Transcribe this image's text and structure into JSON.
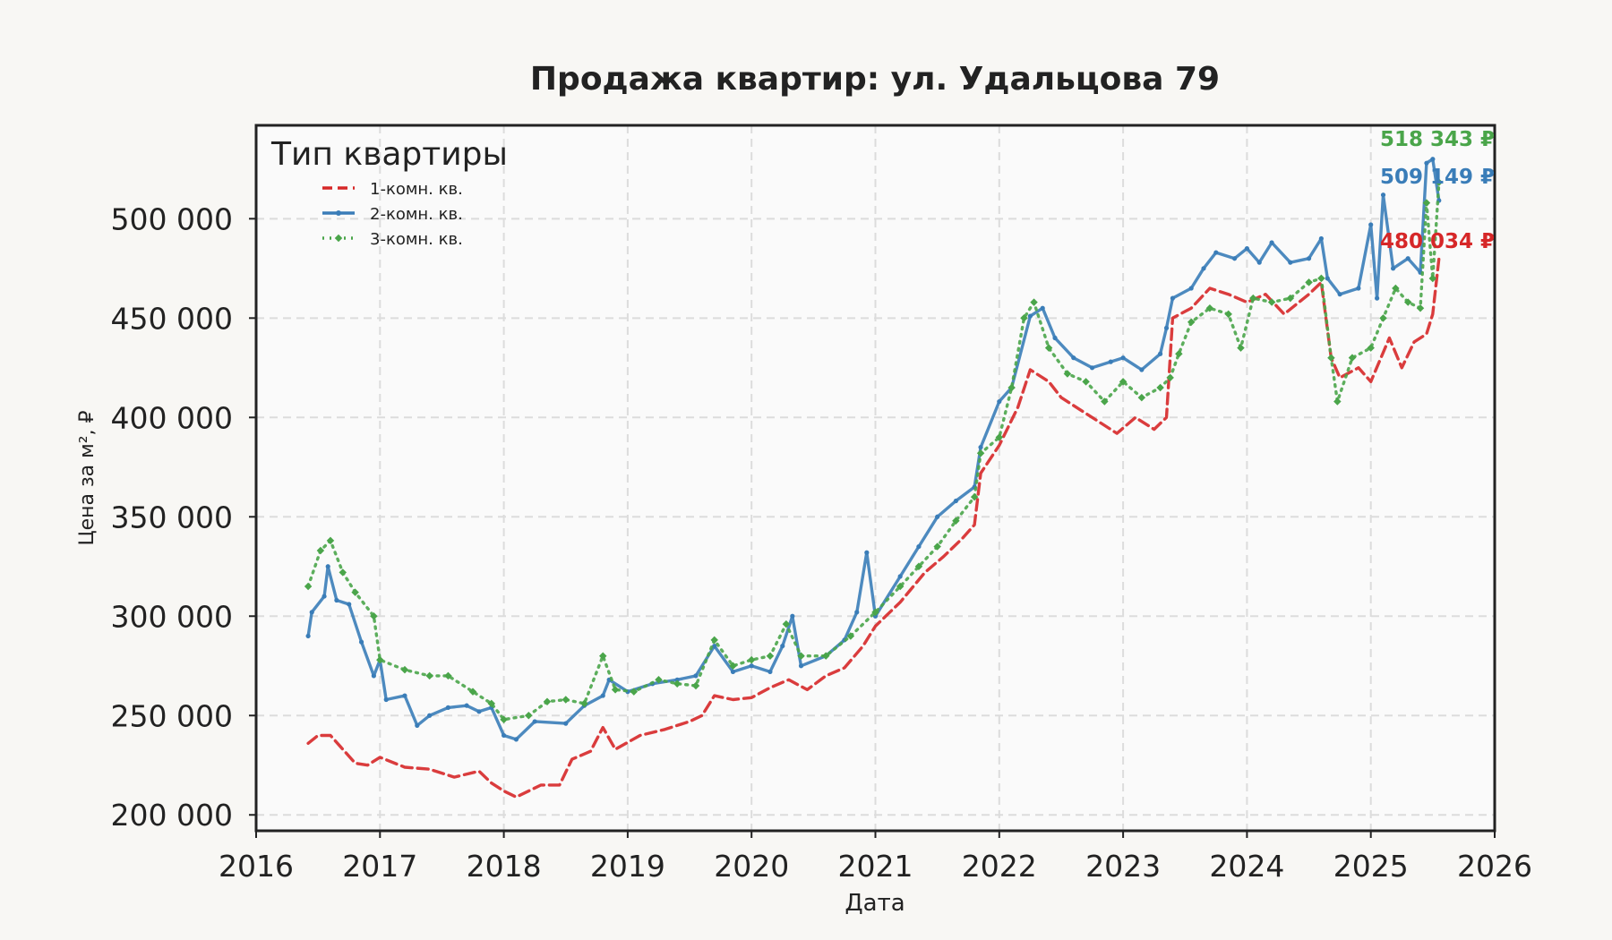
{
  "chart_data": {
    "type": "line",
    "title": "Продажа квартир: ул. Удальцова 79",
    "xlabel": "Дата",
    "ylabel": "Цена за м², ₽",
    "xlim": [
      2016.0,
      2026.0
    ],
    "ylim": [
      192000,
      547000
    ],
    "x_ticks": [
      2016,
      2017,
      2018,
      2019,
      2020,
      2021,
      2022,
      2023,
      2024,
      2025,
      2026
    ],
    "x_tick_labels": [
      "2016",
      "2017",
      "2018",
      "2019",
      "2020",
      "2021",
      "2022",
      "2023",
      "2024",
      "2025",
      "2026"
    ],
    "y_ticks": [
      200000,
      250000,
      300000,
      350000,
      400000,
      450000,
      500000
    ],
    "y_tick_labels": [
      "200 000",
      "250 000",
      "300 000",
      "350 000",
      "400 000",
      "450 000",
      "500 000"
    ],
    "grid": true,
    "legend": {
      "title": "Тип квартиры",
      "position": "top-left"
    },
    "series": [
      {
        "name": "1-комн. кв.",
        "color": "#d62728",
        "style": "dashed",
        "last_label": "480 034 ₽",
        "points": [
          [
            2016.42,
            236000
          ],
          [
            2016.5,
            240000
          ],
          [
            2016.6,
            240000
          ],
          [
            2016.7,
            233000
          ],
          [
            2016.8,
            226000
          ],
          [
            2016.9,
            225000
          ],
          [
            2017.0,
            229000
          ],
          [
            2017.2,
            224000
          ],
          [
            2017.4,
            223000
          ],
          [
            2017.6,
            219000
          ],
          [
            2017.8,
            222000
          ],
          [
            2017.9,
            216000
          ],
          [
            2018.0,
            212000
          ],
          [
            2018.1,
            209000
          ],
          [
            2018.3,
            215000
          ],
          [
            2018.45,
            215000
          ],
          [
            2018.55,
            228000
          ],
          [
            2018.7,
            232000
          ],
          [
            2018.8,
            244000
          ],
          [
            2018.9,
            233000
          ],
          [
            2019.1,
            240000
          ],
          [
            2019.3,
            243000
          ],
          [
            2019.5,
            247000
          ],
          [
            2019.6,
            250000
          ],
          [
            2019.7,
            260000
          ],
          [
            2019.85,
            258000
          ],
          [
            2020.0,
            259000
          ],
          [
            2020.15,
            264000
          ],
          [
            2020.3,
            268000
          ],
          [
            2020.45,
            263000
          ],
          [
            2020.6,
            270000
          ],
          [
            2020.75,
            274000
          ],
          [
            2020.9,
            285000
          ],
          [
            2021.0,
            295000
          ],
          [
            2021.2,
            307000
          ],
          [
            2021.4,
            322000
          ],
          [
            2021.55,
            330000
          ],
          [
            2021.7,
            339000
          ],
          [
            2021.8,
            346000
          ],
          [
            2021.85,
            372000
          ],
          [
            2022.0,
            386000
          ],
          [
            2022.15,
            405000
          ],
          [
            2022.25,
            424000
          ],
          [
            2022.4,
            418000
          ],
          [
            2022.5,
            410000
          ],
          [
            2022.65,
            404000
          ],
          [
            2022.8,
            398000
          ],
          [
            2022.95,
            392000
          ],
          [
            2023.1,
            400000
          ],
          [
            2023.25,
            394000
          ],
          [
            2023.35,
            400000
          ],
          [
            2023.4,
            450000
          ],
          [
            2023.55,
            455000
          ],
          [
            2023.7,
            465000
          ],
          [
            2023.85,
            462000
          ],
          [
            2024.0,
            458000
          ],
          [
            2024.15,
            462000
          ],
          [
            2024.3,
            452000
          ],
          [
            2024.5,
            462000
          ],
          [
            2024.6,
            468000
          ],
          [
            2024.68,
            430000
          ],
          [
            2024.75,
            420000
          ],
          [
            2024.9,
            425000
          ],
          [
            2025.0,
            418000
          ],
          [
            2025.15,
            440000
          ],
          [
            2025.25,
            425000
          ],
          [
            2025.35,
            438000
          ],
          [
            2025.45,
            442000
          ],
          [
            2025.5,
            452000
          ],
          [
            2025.55,
            480034
          ]
        ]
      },
      {
        "name": "2-комн. кв.",
        "color": "#3a7db8",
        "style": "solid-dot",
        "last_label": "509 149 ₽",
        "points": [
          [
            2016.42,
            290000
          ],
          [
            2016.45,
            302000
          ],
          [
            2016.55,
            310000
          ],
          [
            2016.58,
            325000
          ],
          [
            2016.65,
            308000
          ],
          [
            2016.75,
            306000
          ],
          [
            2016.85,
            287000
          ],
          [
            2016.95,
            270000
          ],
          [
            2017.0,
            278000
          ],
          [
            2017.05,
            258000
          ],
          [
            2017.2,
            260000
          ],
          [
            2017.3,
            245000
          ],
          [
            2017.4,
            250000
          ],
          [
            2017.55,
            254000
          ],
          [
            2017.7,
            255000
          ],
          [
            2017.8,
            252000
          ],
          [
            2017.9,
            254000
          ],
          [
            2018.0,
            240000
          ],
          [
            2018.1,
            238000
          ],
          [
            2018.25,
            247000
          ],
          [
            2018.5,
            246000
          ],
          [
            2018.65,
            255000
          ],
          [
            2018.8,
            260000
          ],
          [
            2018.85,
            268000
          ],
          [
            2019.0,
            262000
          ],
          [
            2019.2,
            266000
          ],
          [
            2019.4,
            268000
          ],
          [
            2019.55,
            270000
          ],
          [
            2019.7,
            285000
          ],
          [
            2019.85,
            272000
          ],
          [
            2020.0,
            275000
          ],
          [
            2020.15,
            272000
          ],
          [
            2020.25,
            285000
          ],
          [
            2020.33,
            300000
          ],
          [
            2020.4,
            275000
          ],
          [
            2020.6,
            280000
          ],
          [
            2020.75,
            288000
          ],
          [
            2020.85,
            302000
          ],
          [
            2020.93,
            332000
          ],
          [
            2021.0,
            300000
          ],
          [
            2021.2,
            320000
          ],
          [
            2021.35,
            335000
          ],
          [
            2021.5,
            350000
          ],
          [
            2021.65,
            358000
          ],
          [
            2021.8,
            365000
          ],
          [
            2021.85,
            385000
          ],
          [
            2022.0,
            408000
          ],
          [
            2022.1,
            415000
          ],
          [
            2022.25,
            451000
          ],
          [
            2022.35,
            455000
          ],
          [
            2022.45,
            440000
          ],
          [
            2022.6,
            430000
          ],
          [
            2022.75,
            425000
          ],
          [
            2022.9,
            428000
          ],
          [
            2023.0,
            430000
          ],
          [
            2023.15,
            424000
          ],
          [
            2023.3,
            432000
          ],
          [
            2023.35,
            445000
          ],
          [
            2023.4,
            460000
          ],
          [
            2023.55,
            465000
          ],
          [
            2023.65,
            475000
          ],
          [
            2023.75,
            483000
          ],
          [
            2023.9,
            480000
          ],
          [
            2024.0,
            485000
          ],
          [
            2024.1,
            478000
          ],
          [
            2024.2,
            488000
          ],
          [
            2024.35,
            478000
          ],
          [
            2024.5,
            480000
          ],
          [
            2024.6,
            490000
          ],
          [
            2024.65,
            470000
          ],
          [
            2024.75,
            462000
          ],
          [
            2024.9,
            465000
          ],
          [
            2025.0,
            497000
          ],
          [
            2025.05,
            460000
          ],
          [
            2025.1,
            512000
          ],
          [
            2025.18,
            475000
          ],
          [
            2025.3,
            480000
          ],
          [
            2025.4,
            473000
          ],
          [
            2025.45,
            528000
          ],
          [
            2025.5,
            530000
          ],
          [
            2025.55,
            509149
          ]
        ]
      },
      {
        "name": "3-комн. кв.",
        "color": "#4aa54a",
        "style": "dotted-diamond",
        "last_label": "518 343 ₽",
        "points": [
          [
            2016.42,
            315000
          ],
          [
            2016.52,
            333000
          ],
          [
            2016.6,
            338000
          ],
          [
            2016.7,
            322000
          ],
          [
            2016.8,
            312000
          ],
          [
            2016.95,
            300000
          ],
          [
            2017.0,
            278000
          ],
          [
            2017.2,
            273000
          ],
          [
            2017.4,
            270000
          ],
          [
            2017.55,
            270000
          ],
          [
            2017.75,
            262000
          ],
          [
            2017.9,
            256000
          ],
          [
            2018.0,
            248000
          ],
          [
            2018.2,
            250000
          ],
          [
            2018.35,
            257000
          ],
          [
            2018.5,
            258000
          ],
          [
            2018.65,
            256000
          ],
          [
            2018.8,
            280000
          ],
          [
            2018.9,
            263000
          ],
          [
            2019.05,
            262000
          ],
          [
            2019.25,
            268000
          ],
          [
            2019.4,
            266000
          ],
          [
            2019.55,
            265000
          ],
          [
            2019.7,
            288000
          ],
          [
            2019.85,
            275000
          ],
          [
            2020.0,
            278000
          ],
          [
            2020.15,
            280000
          ],
          [
            2020.28,
            296000
          ],
          [
            2020.4,
            280000
          ],
          [
            2020.6,
            280000
          ],
          [
            2020.8,
            290000
          ],
          [
            2021.0,
            302000
          ],
          [
            2021.2,
            315000
          ],
          [
            2021.35,
            325000
          ],
          [
            2021.5,
            335000
          ],
          [
            2021.65,
            348000
          ],
          [
            2021.8,
            360000
          ],
          [
            2021.85,
            382000
          ],
          [
            2022.0,
            390000
          ],
          [
            2022.1,
            415000
          ],
          [
            2022.2,
            450000
          ],
          [
            2022.28,
            458000
          ],
          [
            2022.4,
            435000
          ],
          [
            2022.55,
            422000
          ],
          [
            2022.7,
            418000
          ],
          [
            2022.85,
            408000
          ],
          [
            2023.0,
            418000
          ],
          [
            2023.15,
            410000
          ],
          [
            2023.3,
            415000
          ],
          [
            2023.38,
            420000
          ],
          [
            2023.45,
            432000
          ],
          [
            2023.55,
            448000
          ],
          [
            2023.7,
            455000
          ],
          [
            2023.85,
            452000
          ],
          [
            2023.95,
            435000
          ],
          [
            2024.05,
            460000
          ],
          [
            2024.2,
            458000
          ],
          [
            2024.35,
            460000
          ],
          [
            2024.5,
            468000
          ],
          [
            2024.6,
            470000
          ],
          [
            2024.68,
            430000
          ],
          [
            2024.73,
            408000
          ],
          [
            2024.85,
            430000
          ],
          [
            2025.0,
            435000
          ],
          [
            2025.1,
            450000
          ],
          [
            2025.2,
            465000
          ],
          [
            2025.3,
            458000
          ],
          [
            2025.4,
            455000
          ],
          [
            2025.45,
            508000
          ],
          [
            2025.5,
            470000
          ],
          [
            2025.55,
            518343
          ]
        ]
      }
    ]
  }
}
